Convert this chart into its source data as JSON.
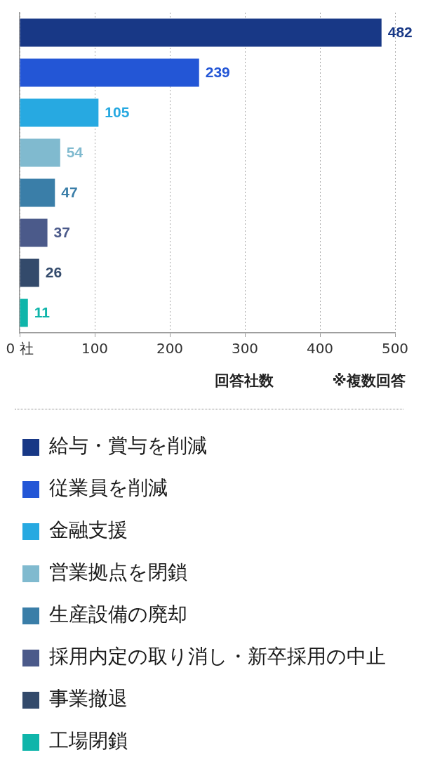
{
  "chart_data": {
    "type": "bar",
    "orientation": "horizontal",
    "categories": [
      null
    ],
    "series": [
      {
        "name": "給与・賞与を削減",
        "color": "#183886",
        "values": [
          482
        ]
      },
      {
        "name": "従業員を削減",
        "color": "#2356d6",
        "values": [
          239
        ]
      },
      {
        "name": "金融支援",
        "color": "#27a9e1",
        "values": [
          105
        ]
      },
      {
        "name": "営業拠点を閉鎖",
        "color": "#80bacf",
        "values": [
          54
        ]
      },
      {
        "name": "生産設備の廃却",
        "color": "#3a7ea8",
        "values": [
          47
        ]
      },
      {
        "name": "採用内定の取り消し・新卒採用の中止",
        "color": "#4b5a8a",
        "values": [
          37
        ]
      },
      {
        "name": "事業撤退",
        "color": "#334a6b",
        "values": [
          26
        ]
      },
      {
        "name": "工場閉鎖",
        "color": "#0fb5aa",
        "values": [
          11
        ]
      }
    ],
    "xlim": [
      0,
      500
    ],
    "xticks": [
      {
        "value": 0,
        "label": "0 社"
      },
      100,
      200,
      300,
      400,
      500
    ],
    "xlabel": "回答社数",
    "annotations": [
      "※複数回答"
    ],
    "data_labels": true,
    "grid": "x",
    "legend": "bottom",
    "tick_labels": "x"
  }
}
